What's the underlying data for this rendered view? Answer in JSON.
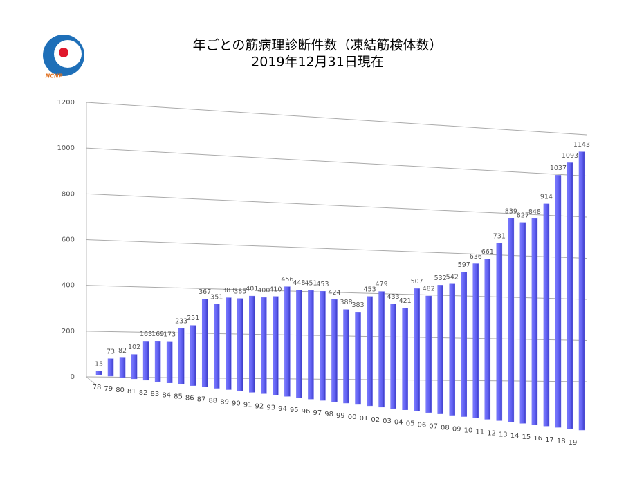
{
  "logo": {
    "text": "NCNP"
  },
  "chart_data": {
    "type": "bar",
    "title": "年ごとの筋病理診断件数（凍結筋検体数）",
    "subtitle": "2019年12月31日現在",
    "categories": [
      "78",
      "79",
      "80",
      "81",
      "82",
      "83",
      "84",
      "85",
      "86",
      "87",
      "88",
      "89",
      "90",
      "91",
      "92",
      "93",
      "94",
      "95",
      "96",
      "97",
      "98",
      "99",
      "00",
      "01",
      "02",
      "03",
      "04",
      "05",
      "06",
      "07",
      "08",
      "09",
      "10",
      "11",
      "12",
      "13",
      "14",
      "15",
      "16",
      "17",
      "18",
      "19"
    ],
    "values": [
      15,
      73,
      82,
      102,
      163,
      169,
      173,
      233,
      251,
      367,
      351,
      383,
      385,
      401,
      400,
      410,
      456,
      448,
      451,
      453,
      424,
      388,
      383,
      453,
      479,
      433,
      421,
      507,
      482,
      532,
      542,
      597,
      636,
      661,
      731,
      839,
      827,
      848,
      914,
      1037,
      1093,
      1143
    ],
    "color": "#6a6af0",
    "ylim": [
      0,
      1200
    ],
    "yticks": [
      0,
      200,
      400,
      600,
      800,
      1000,
      1200
    ],
    "grid": true
  }
}
